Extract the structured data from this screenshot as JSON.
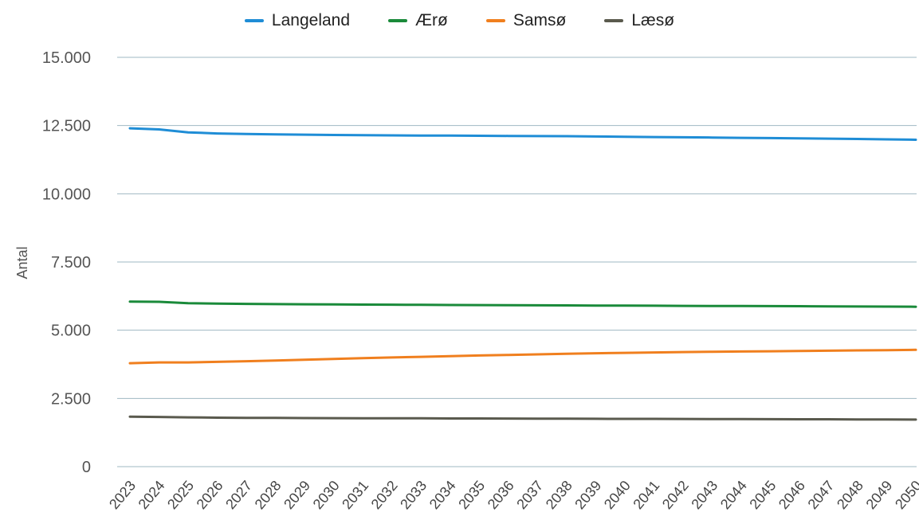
{
  "chart_data": {
    "type": "line",
    "title": "",
    "xlabel": "",
    "ylabel": "Antal",
    "ylim": [
      0,
      15000
    ],
    "grid": true,
    "legend_position": "top-center",
    "y_ticks": [
      0,
      2500,
      5000,
      7500,
      10000,
      12500,
      15000
    ],
    "y_tick_labels": [
      "0",
      "2.500",
      "5.000",
      "7.500",
      "10.000",
      "12.500",
      "15.000"
    ],
    "x": [
      "2023",
      "2024",
      "2025",
      "2026",
      "2027",
      "2028",
      "2029",
      "2030",
      "2031",
      "2032",
      "2033",
      "2034",
      "2035",
      "2036",
      "2037",
      "2038",
      "2039",
      "2040",
      "2041",
      "2042",
      "2043",
      "2044",
      "2045",
      "2046",
      "2047",
      "2048",
      "2049",
      "2050"
    ],
    "series": [
      {
        "name": "Langeland",
        "color": "#1f8dd6",
        "values": [
          12400,
          12360,
          12250,
          12210,
          12190,
          12175,
          12165,
          12155,
          12145,
          12140,
          12135,
          12130,
          12125,
          12120,
          12115,
          12110,
          12100,
          12090,
          12080,
          12070,
          12060,
          12050,
          12040,
          12030,
          12020,
          12010,
          11995,
          11980
        ]
      },
      {
        "name": "Ærø",
        "color": "#1a8a3a",
        "values": [
          6050,
          6040,
          5990,
          5975,
          5965,
          5955,
          5950,
          5945,
          5940,
          5935,
          5930,
          5925,
          5920,
          5915,
          5912,
          5910,
          5905,
          5900,
          5897,
          5893,
          5890,
          5887,
          5883,
          5880,
          5875,
          5870,
          5865,
          5860
        ]
      },
      {
        "name": "Samsø",
        "color": "#f07f1e",
        "values": [
          3790,
          3820,
          3820,
          3840,
          3865,
          3890,
          3920,
          3945,
          3975,
          4000,
          4025,
          4050,
          4075,
          4095,
          4115,
          4135,
          4155,
          4170,
          4185,
          4200,
          4210,
          4220,
          4230,
          4240,
          4250,
          4260,
          4270,
          4280
        ]
      },
      {
        "name": "Læsø",
        "color": "#5a5a4e",
        "values": [
          1830,
          1820,
          1805,
          1795,
          1790,
          1785,
          1780,
          1778,
          1775,
          1772,
          1770,
          1767,
          1765,
          1762,
          1760,
          1757,
          1755,
          1752,
          1750,
          1747,
          1745,
          1742,
          1740,
          1737,
          1735,
          1732,
          1728,
          1725
        ]
      }
    ]
  }
}
